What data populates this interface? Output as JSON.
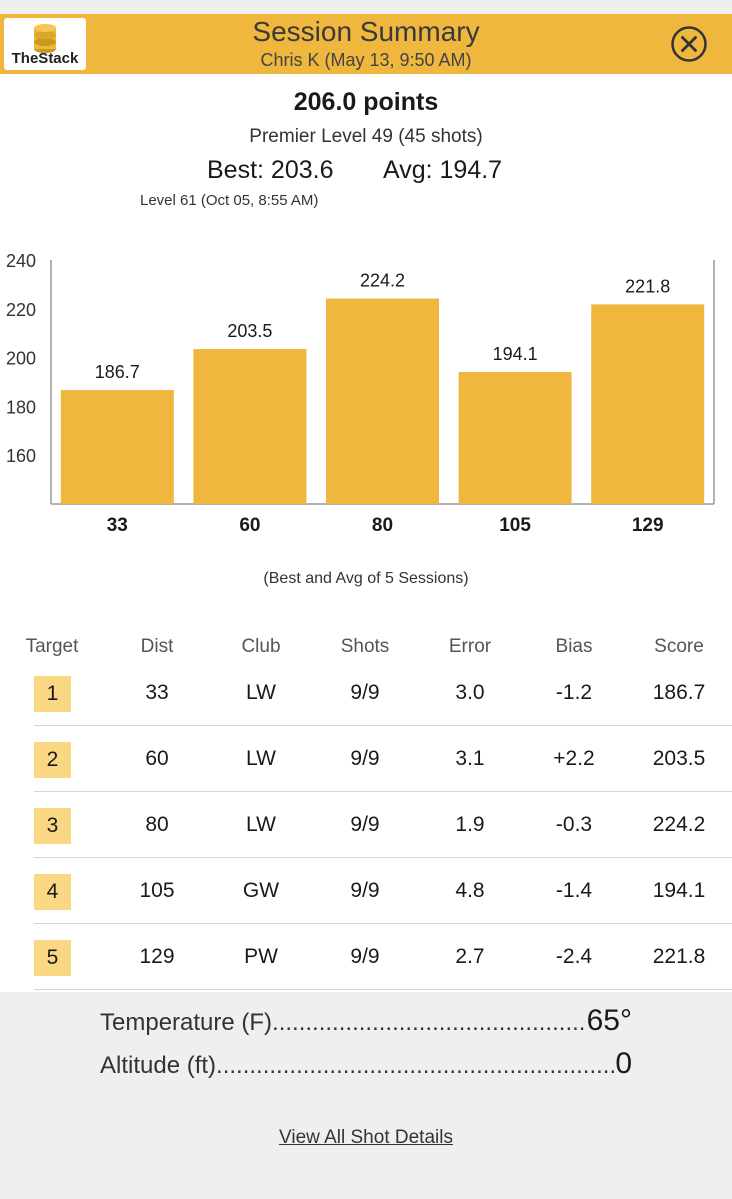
{
  "header": {
    "title": "Session Summary",
    "subtitle": "Chris K (May 13, 9:50 AM)",
    "logo_text": "TheStack",
    "brand_color": "#efb73e"
  },
  "summary": {
    "points": "206.0 points",
    "level": "Premier Level 49 (45 shots)",
    "best": "Best: 203.6",
    "avg": "Avg: 194.7",
    "best_level": "Level 61 (Oct 05, 8:55 AM)"
  },
  "chart_data": {
    "type": "bar",
    "categories": [
      "33",
      "60",
      "80",
      "105",
      "129"
    ],
    "values": [
      186.7,
      203.5,
      224.2,
      194.1,
      221.8
    ],
    "yticks": [
      "240",
      "220",
      "200",
      "180",
      "160"
    ],
    "ylim": [
      140,
      240
    ],
    "bar_color": "#efb73e",
    "note": "(Best and Avg of 5 Sessions)"
  },
  "table": {
    "headers": [
      "Target",
      "Dist",
      "Club",
      "Shots",
      "Error",
      "Bias",
      "Score"
    ],
    "rows": [
      {
        "target": "1",
        "dist": "33",
        "club": "LW",
        "shots": "9/9",
        "error": "3.0",
        "bias": "-1.2",
        "score": "186.7"
      },
      {
        "target": "2",
        "dist": "60",
        "club": "LW",
        "shots": "9/9",
        "error": "3.1",
        "bias": "+2.2",
        "score": "203.5"
      },
      {
        "target": "3",
        "dist": "80",
        "club": "LW",
        "shots": "9/9",
        "error": "1.9",
        "bias": "-0.3",
        "score": "224.2"
      },
      {
        "target": "4",
        "dist": "105",
        "club": "GW",
        "shots": "9/9",
        "error": "4.8",
        "bias": "-1.4",
        "score": "194.1"
      },
      {
        "target": "5",
        "dist": "129",
        "club": "PW",
        "shots": "9/9",
        "error": "2.7",
        "bias": "-2.4",
        "score": "221.8"
      }
    ]
  },
  "conditions": {
    "temperature_label": "Temperature (F)",
    "temperature_value": "65°",
    "altitude_label": "Altitude (ft)",
    "altitude_value": "0"
  },
  "footer": {
    "link_label": "View All Shot Details"
  }
}
